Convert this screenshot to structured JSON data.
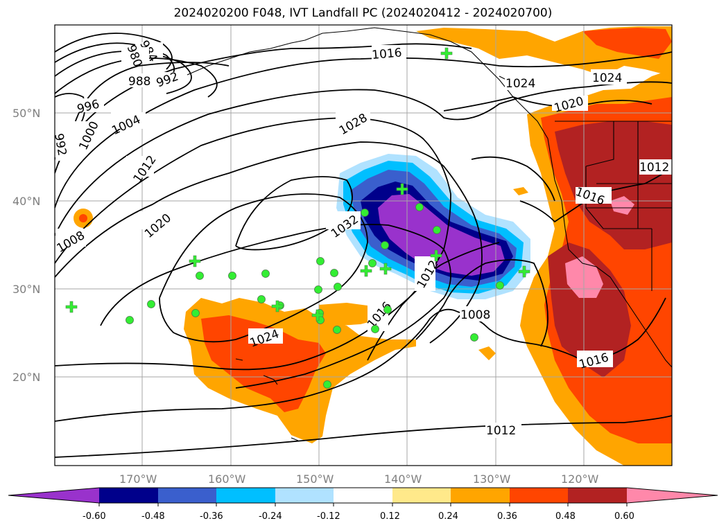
{
  "title": "2024020200 F048, IVT Landfall PC (2024020412 - 2024020700)",
  "map": {
    "lon_ticks": [
      "170°W",
      "160°W",
      "150°W",
      "140°W",
      "130°W",
      "120°W"
    ],
    "lat_ticks": [
      "50°N",
      "40°N",
      "30°N",
      "20°N"
    ],
    "grid": true,
    "projection_extent": {
      "lon_min": -180,
      "lon_max": -110,
      "lat_min": 10,
      "lat_max": 60
    }
  },
  "contours": {
    "kind": "sea-level pressure (hPa)",
    "labels": [
      "984",
      "980",
      "988",
      "992",
      "996",
      "1000",
      "992",
      "1004",
      "1012",
      "1008",
      "1020",
      "1024",
      "1028",
      "1032",
      "1016",
      "1012",
      "1016",
      "1008",
      "1012",
      "1016",
      "1020",
      "1024",
      "1024",
      "1012",
      "1016"
    ]
  },
  "colorbar": {
    "ticks": [
      "-0.60",
      "-0.48",
      "-0.36",
      "-0.24",
      "-0.12",
      "0.12",
      "0.24",
      "0.36",
      "0.48",
      "0.60"
    ],
    "colors": [
      "#9932cc",
      "#00008b",
      "#3a5fcd",
      "#00bfff",
      "#b0e2ff",
      "#ffffff",
      "#ffe98a",
      "#ffa500",
      "#ff4500",
      "#b22222",
      "#ff88aa"
    ],
    "extend": "both"
  },
  "markers": {
    "circle_color": "#33ee33",
    "cross_color": "#33ee33"
  }
}
